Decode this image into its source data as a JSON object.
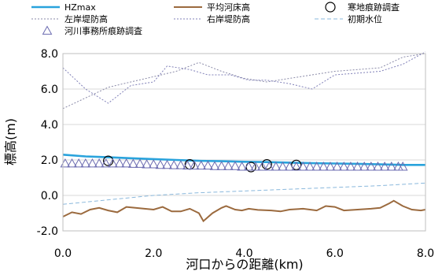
{
  "chart_data": {
    "type": "line",
    "xlabel": "河口からの距離(km)",
    "ylabel": "標高(m)",
    "xlim": [
      0,
      8
    ],
    "ylim": [
      -2,
      8
    ],
    "x_ticks": [
      {
        "value": 0,
        "label": "0.0"
      },
      {
        "value": 2,
        "label": "2.0"
      },
      {
        "value": 4,
        "label": "4.0"
      },
      {
        "value": 6,
        "label": "6.0"
      },
      {
        "value": 8,
        "label": "8.0"
      }
    ],
    "y_ticks": [
      {
        "value": -2,
        "label": "-2.0"
      },
      {
        "value": 0,
        "label": "0.0"
      },
      {
        "value": 2,
        "label": "2.0"
      },
      {
        "value": 4,
        "label": "4.0"
      },
      {
        "value": 6,
        "label": "6.0"
      },
      {
        "value": 8,
        "label": "8.0"
      }
    ],
    "grid": {
      "y": true,
      "x": false
    },
    "legend": "top",
    "series": [
      {
        "id": "hzmax",
        "name": "HZmax",
        "style": "line",
        "color": "#29a3dc",
        "points": [
          [
            0,
            2.3
          ],
          [
            0.5,
            2.2
          ],
          [
            1,
            2.15
          ],
          [
            1.5,
            2.1
          ],
          [
            2,
            2.05
          ],
          [
            2.5,
            2.0
          ],
          [
            3,
            1.95
          ],
          [
            3.5,
            1.93
          ],
          [
            4,
            1.9
          ],
          [
            4.5,
            1.88
          ],
          [
            5,
            1.85
          ],
          [
            5.5,
            1.82
          ],
          [
            6,
            1.8
          ],
          [
            6.5,
            1.78
          ],
          [
            7,
            1.75
          ],
          [
            7.5,
            1.72
          ],
          [
            8,
            1.72
          ]
        ]
      },
      {
        "id": "bed",
        "name": "平均河床高",
        "style": "line",
        "color": "#9b6a3e",
        "points": [
          [
            0,
            -1.2
          ],
          [
            0.2,
            -0.95
          ],
          [
            0.4,
            -1.05
          ],
          [
            0.6,
            -0.8
          ],
          [
            0.8,
            -0.7
          ],
          [
            1.0,
            -0.85
          ],
          [
            1.2,
            -0.95
          ],
          [
            1.4,
            -0.65
          ],
          [
            1.6,
            -0.7
          ],
          [
            1.8,
            -0.75
          ],
          [
            2.0,
            -0.8
          ],
          [
            2.2,
            -0.65
          ],
          [
            2.4,
            -0.9
          ],
          [
            2.6,
            -0.9
          ],
          [
            2.8,
            -0.75
          ],
          [
            3.0,
            -1.0
          ],
          [
            3.1,
            -1.45
          ],
          [
            3.3,
            -1.0
          ],
          [
            3.5,
            -0.7
          ],
          [
            3.6,
            -0.6
          ],
          [
            3.8,
            -0.8
          ],
          [
            3.95,
            -0.85
          ],
          [
            4.1,
            -0.75
          ],
          [
            4.3,
            -0.82
          ],
          [
            4.6,
            -0.85
          ],
          [
            4.8,
            -0.9
          ],
          [
            5.0,
            -0.8
          ],
          [
            5.3,
            -0.75
          ],
          [
            5.6,
            -0.85
          ],
          [
            5.8,
            -0.6
          ],
          [
            6.0,
            -0.65
          ],
          [
            6.2,
            -0.85
          ],
          [
            6.5,
            -0.8
          ],
          [
            6.8,
            -0.75
          ],
          [
            7.0,
            -0.7
          ],
          [
            7.2,
            -0.45
          ],
          [
            7.3,
            -0.3
          ],
          [
            7.5,
            -0.6
          ],
          [
            7.7,
            -0.8
          ],
          [
            7.9,
            -0.85
          ],
          [
            8.0,
            -0.8
          ]
        ]
      },
      {
        "id": "left_levee",
        "name": "左岸堤防高",
        "style": "dotted",
        "color": "#8a8aa8",
        "points": [
          [
            0,
            4.9
          ],
          [
            0.5,
            5.5
          ],
          [
            1,
            6.1
          ],
          [
            1.5,
            6.4
          ],
          [
            2,
            6.7
          ],
          [
            2.5,
            7.0
          ],
          [
            3,
            7.5
          ],
          [
            3.5,
            7.0
          ],
          [
            4,
            6.6
          ],
          [
            4.5,
            6.4
          ],
          [
            5,
            6.6
          ],
          [
            5.5,
            6.8
          ],
          [
            6,
            7.0
          ],
          [
            6.5,
            7.1
          ],
          [
            7,
            7.2
          ],
          [
            7.5,
            7.8
          ],
          [
            8,
            8.0
          ]
        ]
      },
      {
        "id": "right_levee",
        "name": "右岸堤防高",
        "style": "dotted",
        "color": "#8080b8",
        "points": [
          [
            0,
            7.2
          ],
          [
            0.5,
            6.0
          ],
          [
            1,
            5.2
          ],
          [
            1.5,
            6.2
          ],
          [
            2,
            6.4
          ],
          [
            2.3,
            7.3
          ],
          [
            2.8,
            7.1
          ],
          [
            3.2,
            6.8
          ],
          [
            3.7,
            6.8
          ],
          [
            4.1,
            6.5
          ],
          [
            4.5,
            6.5
          ],
          [
            5,
            6.3
          ],
          [
            5.5,
            6.0
          ],
          [
            6,
            6.8
          ],
          [
            6.5,
            6.9
          ],
          [
            7,
            7.0
          ],
          [
            7.5,
            7.4
          ],
          [
            8,
            8.1
          ]
        ]
      },
      {
        "id": "initial_wl",
        "name": "初期水位",
        "style": "dashed",
        "color": "#8ab8dc",
        "points": [
          [
            0,
            -0.5
          ],
          [
            1,
            -0.25
          ],
          [
            2,
            0.0
          ],
          [
            3,
            0.15
          ],
          [
            4,
            0.25
          ],
          [
            5,
            0.35
          ],
          [
            6,
            0.45
          ],
          [
            7,
            0.55
          ],
          [
            8,
            0.7
          ]
        ]
      },
      {
        "id": "cold_marks",
        "name": "寒地痕跡調査",
        "style": "circle",
        "color": "#000000",
        "points": [
          [
            1.0,
            1.95
          ],
          [
            2.8,
            1.75
          ],
          [
            4.15,
            1.6
          ],
          [
            4.5,
            1.75
          ],
          [
            5.15,
            1.72
          ]
        ]
      },
      {
        "id": "river_marks",
        "name": "河川事務所痕跡調査",
        "style": "triangle",
        "color": "#6b6bb0",
        "points": [
          [
            0.05,
            1.8
          ],
          [
            0.2,
            1.8
          ],
          [
            0.35,
            1.8
          ],
          [
            0.5,
            1.8
          ],
          [
            0.65,
            1.8
          ],
          [
            0.8,
            1.8
          ],
          [
            0.95,
            1.8
          ],
          [
            1.1,
            1.8
          ],
          [
            1.25,
            1.8
          ],
          [
            1.4,
            1.8
          ],
          [
            1.55,
            1.78
          ],
          [
            1.7,
            1.78
          ],
          [
            1.85,
            1.75
          ],
          [
            2.0,
            1.75
          ],
          [
            2.15,
            1.72
          ],
          [
            2.3,
            1.72
          ],
          [
            2.45,
            1.7
          ],
          [
            2.6,
            1.7
          ],
          [
            2.75,
            1.68
          ],
          [
            2.9,
            1.68
          ],
          [
            3.05,
            1.68
          ],
          [
            3.2,
            1.68
          ],
          [
            3.35,
            1.65
          ],
          [
            3.5,
            1.65
          ],
          [
            3.65,
            1.65
          ],
          [
            3.8,
            1.65
          ],
          [
            3.95,
            1.62
          ],
          [
            4.1,
            1.62
          ],
          [
            4.25,
            1.62
          ],
          [
            4.4,
            1.62
          ],
          [
            4.55,
            1.62
          ],
          [
            4.7,
            1.62
          ],
          [
            4.85,
            1.62
          ],
          [
            5.0,
            1.62
          ],
          [
            5.15,
            1.62
          ],
          [
            5.3,
            1.62
          ],
          [
            5.45,
            1.62
          ],
          [
            5.6,
            1.62
          ],
          [
            5.75,
            1.62
          ],
          [
            5.9,
            1.62
          ],
          [
            6.05,
            1.62
          ],
          [
            6.2,
            1.62
          ],
          [
            6.35,
            1.62
          ],
          [
            6.5,
            1.62
          ],
          [
            6.65,
            1.62
          ],
          [
            6.8,
            1.62
          ],
          [
            6.95,
            1.62
          ],
          [
            7.1,
            1.62
          ],
          [
            7.25,
            1.62
          ],
          [
            7.4,
            1.62
          ],
          [
            7.5,
            1.62
          ]
        ]
      }
    ]
  }
}
